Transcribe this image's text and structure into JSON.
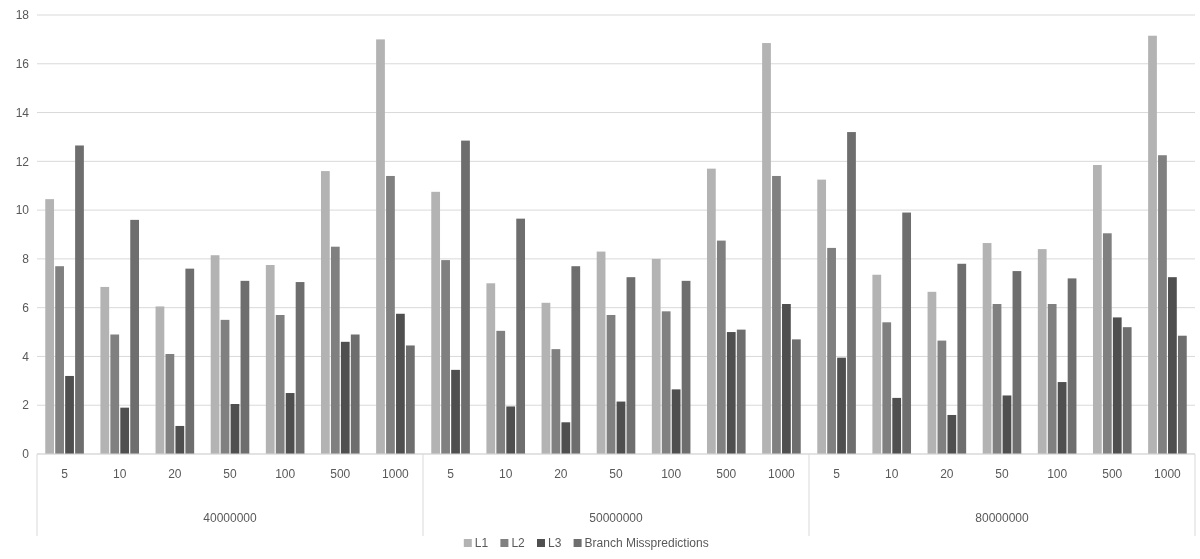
{
  "chart_data": {
    "type": "bar",
    "categories": [
      "5",
      "10",
      "20",
      "50",
      "100",
      "500",
      "1000",
      "5",
      "10",
      "20",
      "50",
      "100",
      "500",
      "1000",
      "5",
      "10",
      "20",
      "50",
      "100",
      "500",
      "1000"
    ],
    "series": [
      {
        "name": "L1",
        "color": "#b3b3b3",
        "values": [
          10.45,
          6.85,
          6.05,
          8.15,
          7.75,
          11.6,
          17.0,
          10.75,
          7.0,
          6.2,
          8.3,
          8.0,
          11.7,
          16.85,
          11.25,
          7.35,
          6.65,
          8.65,
          8.4,
          11.85,
          17.15
        ]
      },
      {
        "name": "L2",
        "color": "#808080",
        "values": [
          7.7,
          4.9,
          4.1,
          5.5,
          5.7,
          8.5,
          11.4,
          7.95,
          5.05,
          4.3,
          5.7,
          5.85,
          8.75,
          11.4,
          8.45,
          5.4,
          4.65,
          6.15,
          6.15,
          9.05,
          12.25
        ]
      },
      {
        "name": "L3",
        "color": "#4f4f4f",
        "values": [
          3.2,
          1.9,
          1.15,
          2.05,
          2.5,
          4.6,
          5.75,
          3.45,
          1.95,
          1.3,
          2.15,
          2.65,
          5.0,
          6.15,
          3.95,
          2.3,
          1.6,
          2.4,
          2.95,
          5.6,
          7.25
        ]
      },
      {
        "name": "Branch Misspredictions",
        "color": "#6e6e6e",
        "values": [
          12.65,
          9.6,
          7.6,
          7.1,
          7.05,
          4.9,
          4.45,
          12.85,
          9.65,
          7.7,
          7.25,
          7.1,
          5.1,
          4.7,
          13.2,
          9.9,
          7.8,
          7.5,
          7.2,
          5.2,
          4.85
        ]
      }
    ],
    "annotations": [
      "40000000",
      "50000000",
      "80000000"
    ],
    "ylim": [
      0,
      18
    ],
    "yticks": [
      0,
      2,
      4,
      6,
      8,
      10,
      12,
      14,
      16,
      18
    ],
    "grid": "y",
    "legend": "bottom"
  }
}
